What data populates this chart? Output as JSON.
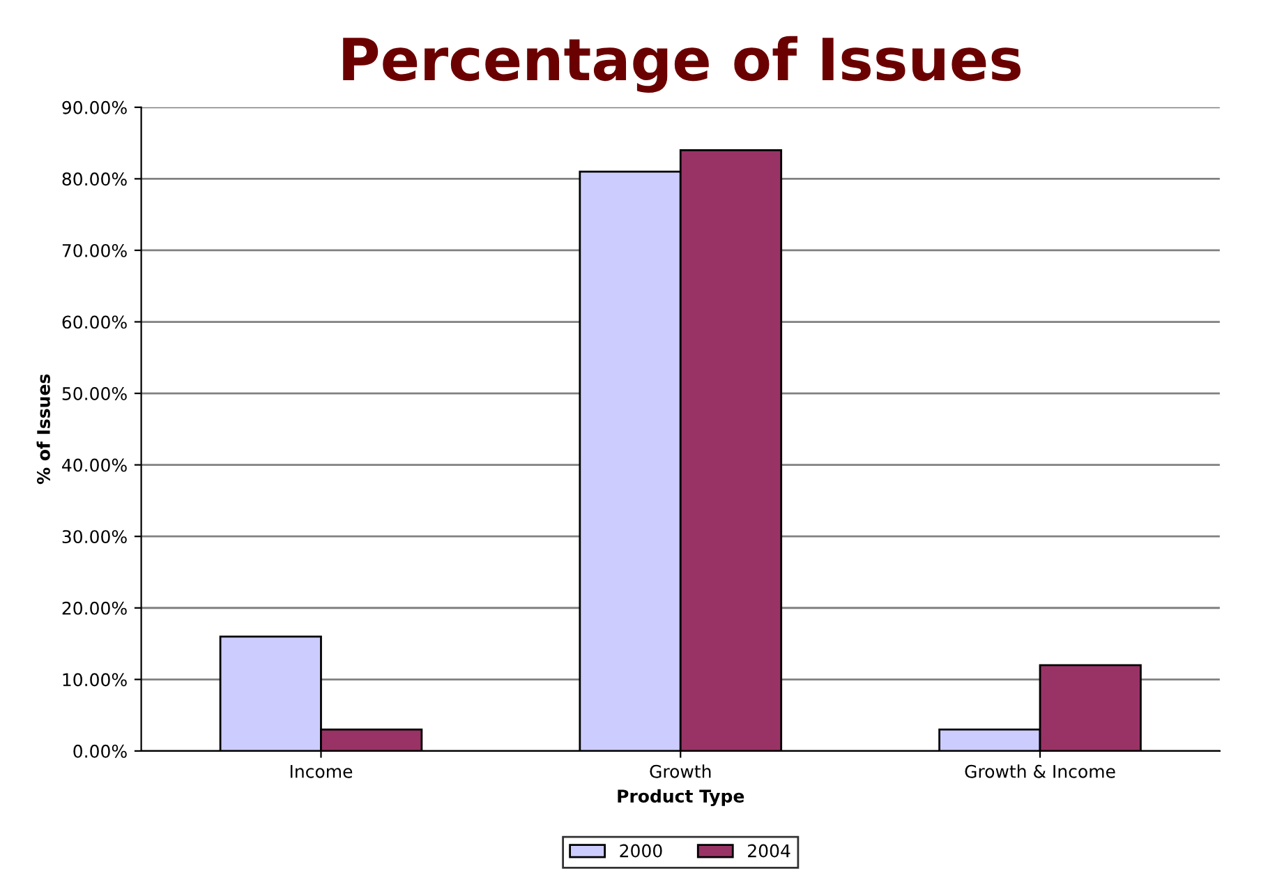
{
  "chart_data": {
    "type": "bar",
    "title": "Percentage of Issues",
    "xlabel": "Product Type",
    "ylabel": "% of Issues",
    "categories": [
      "Income",
      "Growth",
      "Growth & Income"
    ],
    "series": [
      {
        "name": "2000",
        "color": "#ccccff",
        "values": [
          16,
          81,
          3
        ]
      },
      {
        "name": "2004",
        "color": "#993366",
        "values": [
          3,
          84,
          12
        ]
      }
    ],
    "ylim": [
      0,
      90
    ],
    "yticks": [
      {
        "value": 0,
        "label": "0.00%"
      },
      {
        "value": 10,
        "label": "10.00%"
      },
      {
        "value": 20,
        "label": "20.00%"
      },
      {
        "value": 30,
        "label": "30.00%"
      },
      {
        "value": 40,
        "label": "40.00%"
      },
      {
        "value": 50,
        "label": "50.00%"
      },
      {
        "value": 60,
        "label": "60.00%"
      },
      {
        "value": 70,
        "label": "70.00%"
      },
      {
        "value": 80,
        "label": "80.00%"
      },
      {
        "value": 90,
        "label": "90.00%"
      }
    ],
    "grid": "y",
    "legend": "bottom"
  }
}
